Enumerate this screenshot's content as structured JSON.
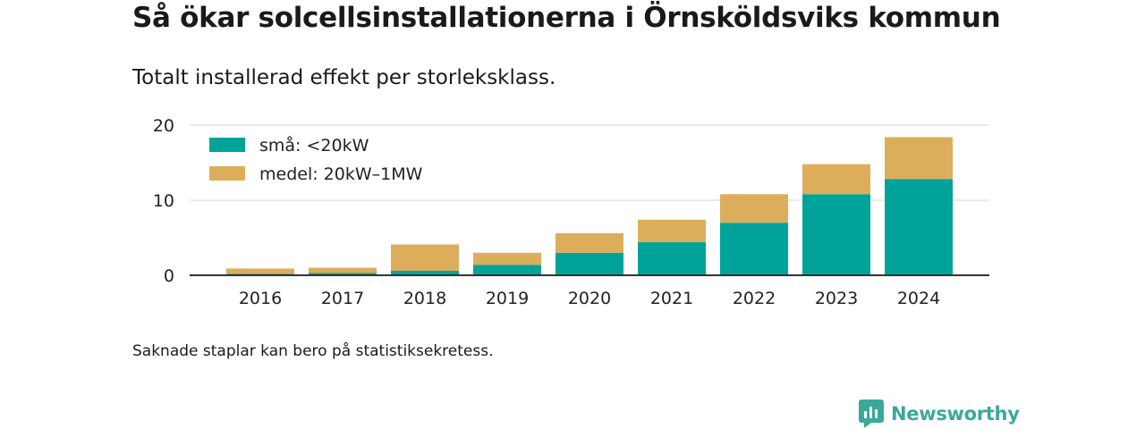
{
  "header": {
    "title": "Så ökar solcellsinstallationerna i Örnsköldsviks kommun",
    "subtitle": "Totalt installerad effekt per storleksklass."
  },
  "footnote": "Saknade staplar kan bero på statistiksekretess.",
  "brand": {
    "name": "Newsworthy",
    "icon": "newsworthy-logo-icon",
    "color": "#3aa99a"
  },
  "chart_data": {
    "type": "bar",
    "stacked": true,
    "title": "",
    "xlabel": "",
    "ylabel": "",
    "categories": [
      "2016",
      "2017",
      "2018",
      "2019",
      "2020",
      "2021",
      "2022",
      "2023",
      "2024"
    ],
    "series": [
      {
        "name": "små: <20kW",
        "color": "#00a399",
        "values": [
          0.2,
          0.3,
          0.6,
          1.4,
          3.0,
          4.4,
          7.0,
          10.8,
          12.8
        ]
      },
      {
        "name": "medel: 20kW–1MW",
        "color": "#dcae5b",
        "values": [
          0.7,
          0.7,
          3.5,
          1.6,
          2.6,
          3.0,
          3.8,
          4.0,
          5.6
        ]
      }
    ],
    "ylim": [
      0,
      20
    ],
    "yticks": [
      0,
      10,
      20
    ],
    "grid": true,
    "legend": "top-left"
  }
}
